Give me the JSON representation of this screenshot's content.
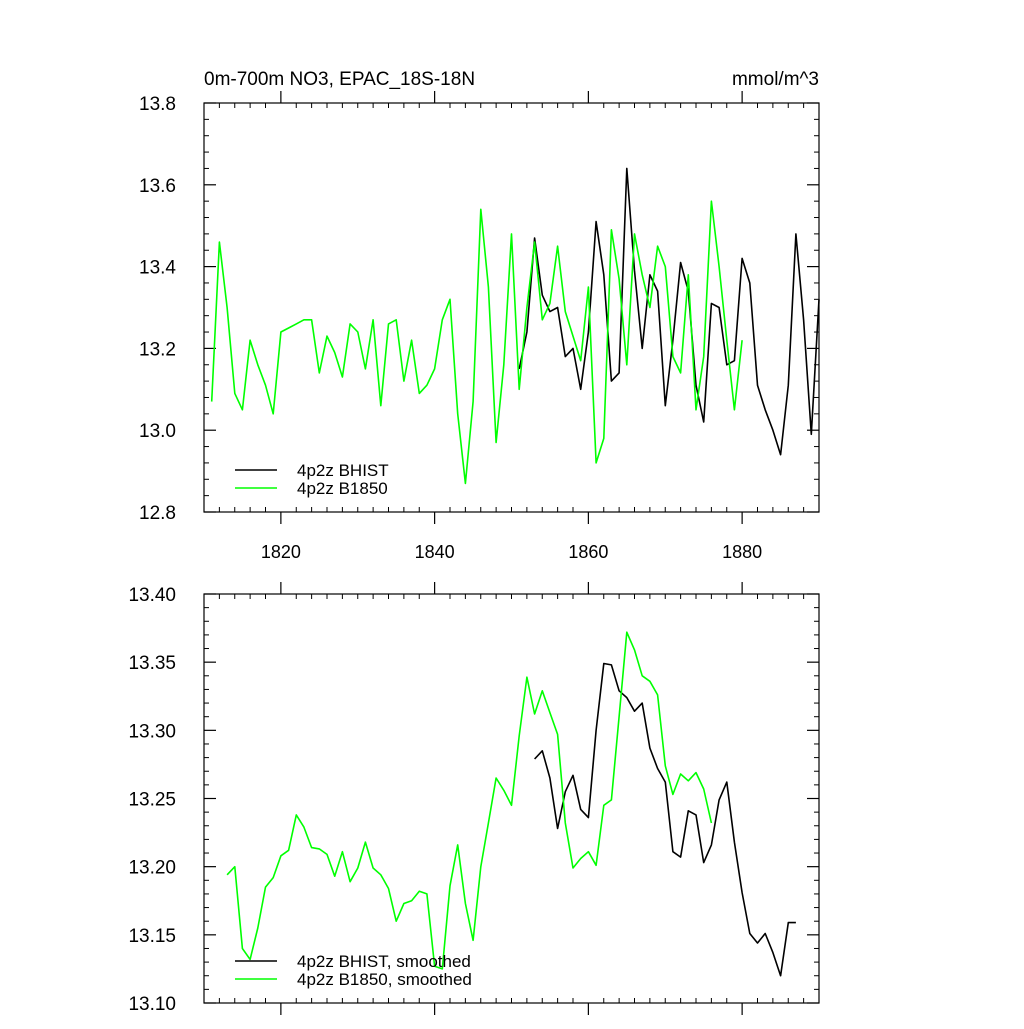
{
  "chart_data": [
    {
      "type": "line",
      "title": "0m-700m NO3, EPAC_18S-18N",
      "units": "mmol/m^3",
      "xlim": [
        1810,
        1890
      ],
      "ylim": [
        12.8,
        13.8
      ],
      "x_ticks": [
        1820,
        1840,
        1860,
        1880
      ],
      "x_tick_labels": [
        "1820",
        "1840",
        "1860",
        "1880"
      ],
      "y_ticks": [
        12.8,
        13.0,
        13.2,
        13.4,
        13.6,
        13.8
      ],
      "y_tick_labels": [
        "12.8",
        "13.0",
        "13.2",
        "13.4",
        "13.6",
        "13.8"
      ],
      "legend_position": "bottom-left",
      "series": [
        {
          "name": "4p2z BHIST",
          "color": "#000000",
          "x": [
            1851,
            1852,
            1853,
            1854,
            1855,
            1856,
            1857,
            1858,
            1859,
            1860,
            1861,
            1862,
            1863,
            1864,
            1865,
            1866,
            1867,
            1868,
            1869,
            1870,
            1871,
            1872,
            1873,
            1874,
            1875,
            1876,
            1877,
            1878,
            1879,
            1880,
            1881,
            1882,
            1883,
            1884,
            1885,
            1886,
            1887,
            1888,
            1889,
            1890
          ],
          "y": [
            13.15,
            13.24,
            13.47,
            13.33,
            13.29,
            13.3,
            13.18,
            13.2,
            13.1,
            13.24,
            13.51,
            13.38,
            13.12,
            13.14,
            13.64,
            13.39,
            13.2,
            13.38,
            13.34,
            13.06,
            13.22,
            13.41,
            13.34,
            13.11,
            13.02,
            13.31,
            13.3,
            13.16,
            13.17,
            13.42,
            13.36,
            13.11,
            13.05,
            13.0,
            12.94,
            13.11,
            13.48,
            13.27,
            12.99,
            13.32
          ]
        },
        {
          "name": "4p2z B1850",
          "color": "#00ff00",
          "x": [
            1811,
            1812,
            1813,
            1814,
            1815,
            1816,
            1817,
            1818,
            1819,
            1820,
            1821,
            1822,
            1823,
            1824,
            1825,
            1826,
            1827,
            1828,
            1829,
            1830,
            1831,
            1832,
            1833,
            1834,
            1835,
            1836,
            1837,
            1838,
            1839,
            1840,
            1841,
            1842,
            1843,
            1844,
            1845,
            1846,
            1847,
            1848,
            1849,
            1850,
            1851,
            1852,
            1853,
            1854,
            1855,
            1856,
            1857,
            1858,
            1859,
            1860,
            1861,
            1862,
            1863,
            1864,
            1865,
            1866,
            1867,
            1868,
            1869,
            1870,
            1871,
            1872,
            1873,
            1874,
            1875,
            1876,
            1877,
            1878,
            1879,
            1880
          ],
          "y": [
            13.07,
            13.46,
            13.3,
            13.09,
            13.05,
            13.22,
            13.16,
            13.11,
            13.04,
            13.24,
            13.25,
            13.26,
            13.27,
            13.27,
            13.14,
            13.23,
            13.19,
            13.13,
            13.26,
            13.24,
            13.15,
            13.27,
            13.06,
            13.26,
            13.27,
            13.12,
            13.22,
            13.09,
            13.11,
            13.15,
            13.27,
            13.32,
            13.04,
            12.87,
            13.07,
            13.54,
            13.35,
            12.97,
            13.16,
            13.48,
            13.1,
            13.3,
            13.46,
            13.27,
            13.31,
            13.45,
            13.29,
            13.23,
            13.17,
            13.35,
            12.92,
            12.98,
            13.49,
            13.37,
            13.16,
            13.48,
            13.38,
            13.3,
            13.45,
            13.4,
            13.18,
            13.14,
            13.38,
            13.05,
            13.18,
            13.56,
            13.4,
            13.22,
            13.05,
            13.22
          ]
        }
      ]
    },
    {
      "type": "line",
      "xlim": [
        1810,
        1890
      ],
      "ylim": [
        13.1,
        13.4
      ],
      "x_ticks": [
        1820,
        1840,
        1860,
        1880
      ],
      "y_ticks": [
        13.1,
        13.15,
        13.2,
        13.25,
        13.3,
        13.35,
        13.4
      ],
      "y_tick_labels": [
        "13.10",
        "13.15",
        "13.20",
        "13.25",
        "13.30",
        "13.35",
        "13.40"
      ],
      "legend_position": "bottom-left",
      "series": [
        {
          "name": "4p2z BHIST, smoothed",
          "color": "#000000",
          "x": [
            1853,
            1854,
            1855,
            1856,
            1857,
            1858,
            1859,
            1860,
            1861,
            1862,
            1863,
            1864,
            1865,
            1866,
            1867,
            1868,
            1869,
            1870,
            1871,
            1872,
            1873,
            1874,
            1875,
            1876,
            1877,
            1878,
            1879,
            1880,
            1881,
            1882,
            1883,
            1884,
            1885,
            1886,
            1887
          ],
          "y": [
            13.279,
            13.285,
            13.265,
            13.228,
            13.255,
            13.267,
            13.242,
            13.236,
            13.3,
            13.349,
            13.348,
            13.329,
            13.324,
            13.314,
            13.32,
            13.287,
            13.272,
            13.262,
            13.211,
            13.207,
            13.241,
            13.238,
            13.203,
            13.216,
            13.249,
            13.262,
            13.218,
            13.181,
            13.151,
            13.144,
            13.151,
            13.137,
            13.12,
            13.159,
            13.159
          ]
        },
        {
          "name": "4p2z B1850, smoothed",
          "color": "#00ff00",
          "x": [
            1813,
            1814,
            1815,
            1816,
            1817,
            1818,
            1819,
            1820,
            1821,
            1822,
            1823,
            1824,
            1825,
            1826,
            1827,
            1828,
            1829,
            1830,
            1831,
            1832,
            1833,
            1834,
            1835,
            1836,
            1837,
            1838,
            1839,
            1840,
            1841,
            1842,
            1843,
            1844,
            1845,
            1846,
            1847,
            1848,
            1849,
            1850,
            1851,
            1852,
            1853,
            1854,
            1855,
            1856,
            1857,
            1858,
            1859,
            1860,
            1861,
            1862,
            1863,
            1864,
            1865,
            1866,
            1867,
            1868,
            1869,
            1870,
            1871,
            1872,
            1873,
            1874,
            1875,
            1876
          ],
          "y": [
            13.194,
            13.2,
            13.14,
            13.132,
            13.155,
            13.185,
            13.192,
            13.208,
            13.212,
            13.238,
            13.229,
            13.214,
            13.213,
            13.209,
            13.193,
            13.211,
            13.189,
            13.199,
            13.218,
            13.199,
            13.194,
            13.184,
            13.16,
            13.173,
            13.175,
            13.182,
            13.18,
            13.127,
            13.125,
            13.186,
            13.216,
            13.173,
            13.146,
            13.2,
            13.232,
            13.265,
            13.256,
            13.245,
            13.296,
            13.339,
            13.312,
            13.329,
            13.313,
            13.297,
            13.232,
            13.199,
            13.206,
            13.211,
            13.201,
            13.245,
            13.249,
            13.31,
            13.372,
            13.359,
            13.34,
            13.336,
            13.326,
            13.274,
            13.253,
            13.268,
            13.263,
            13.269,
            13.257,
            13.232
          ]
        }
      ]
    }
  ]
}
